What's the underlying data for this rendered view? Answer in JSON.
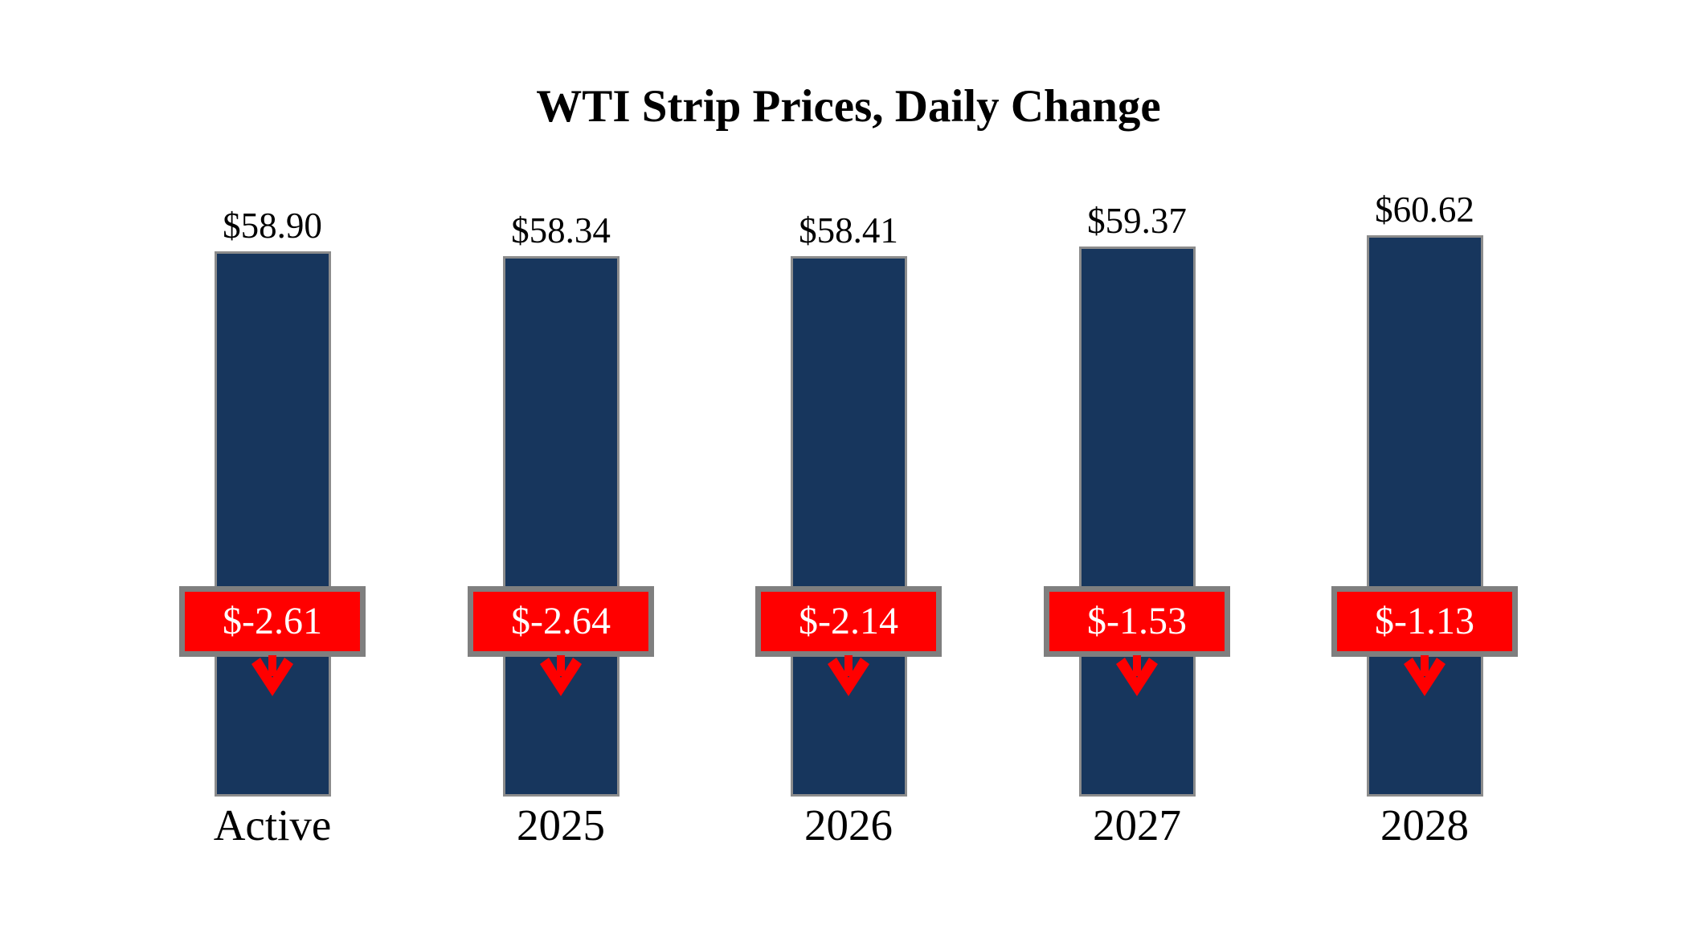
{
  "chart_data": {
    "type": "bar",
    "title": "WTI Strip Prices, Daily Change",
    "categories": [
      "Active",
      "2025",
      "2026",
      "2027",
      "2028"
    ],
    "series": [
      {
        "name": "strip_price",
        "values": [
          58.9,
          58.34,
          58.41,
          59.37,
          60.62
        ],
        "labels": [
          "$58.90",
          "$58.34",
          "$58.41",
          "$59.37",
          "$60.62"
        ]
      },
      {
        "name": "daily_change",
        "values": [
          -2.61,
          -2.64,
          -2.14,
          -1.53,
          -1.13
        ],
        "labels": [
          "$-2.61",
          "$-2.64",
          "$-2.14",
          "$-1.53",
          "$-1.13"
        ]
      }
    ],
    "ylim": [
      0,
      62
    ],
    "axes": "hidden",
    "grid": false,
    "legend": "none",
    "colors": {
      "bar": "#17365D",
      "bar_border": "#8C8C8C",
      "badge_fill": "#FF0000",
      "badge_border": "#7F7F7F",
      "badge_text": "#FFFFFF",
      "arrow": "#FF0000",
      "text": "#000000",
      "background": "#FFFFFF"
    }
  }
}
